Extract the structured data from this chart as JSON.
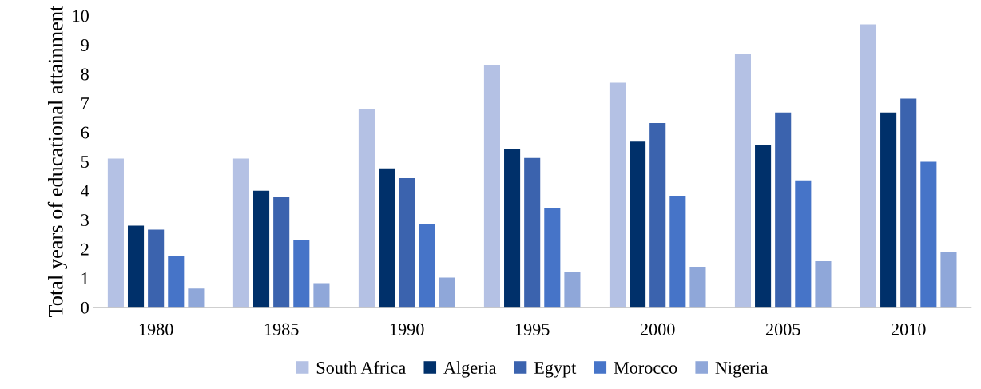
{
  "chart_data": {
    "type": "bar",
    "ylabel": "Total years of educational attainment",
    "categories": [
      "1980",
      "1985",
      "1990",
      "1995",
      "2000",
      "2005",
      "2010"
    ],
    "ylim": [
      0,
      10
    ],
    "yticks": [
      0,
      1,
      2,
      3,
      4,
      5,
      6,
      7,
      8,
      9,
      10
    ],
    "grid": false,
    "legend": "bottom",
    "series": [
      {
        "name": "South Africa",
        "color": "#b4c1e4",
        "values": [
          5.1,
          5.1,
          6.8,
          8.3,
          7.7,
          8.67,
          9.7
        ]
      },
      {
        "name": "Algeria",
        "color": "#00306a",
        "values": [
          2.8,
          4.0,
          4.76,
          5.43,
          5.68,
          5.57,
          6.68
        ]
      },
      {
        "name": "Egypt",
        "color": "#3b63ae",
        "values": [
          2.66,
          3.77,
          4.43,
          5.12,
          6.32,
          6.68,
          7.15
        ]
      },
      {
        "name": "Morocco",
        "color": "#4674c8",
        "values": [
          1.75,
          2.3,
          2.85,
          3.41,
          3.82,
          4.35,
          4.99
        ]
      },
      {
        "name": "Nigeria",
        "color": "#8fa7d9",
        "values": [
          0.64,
          0.83,
          1.02,
          1.22,
          1.39,
          1.58,
          1.88
        ]
      }
    ]
  }
}
